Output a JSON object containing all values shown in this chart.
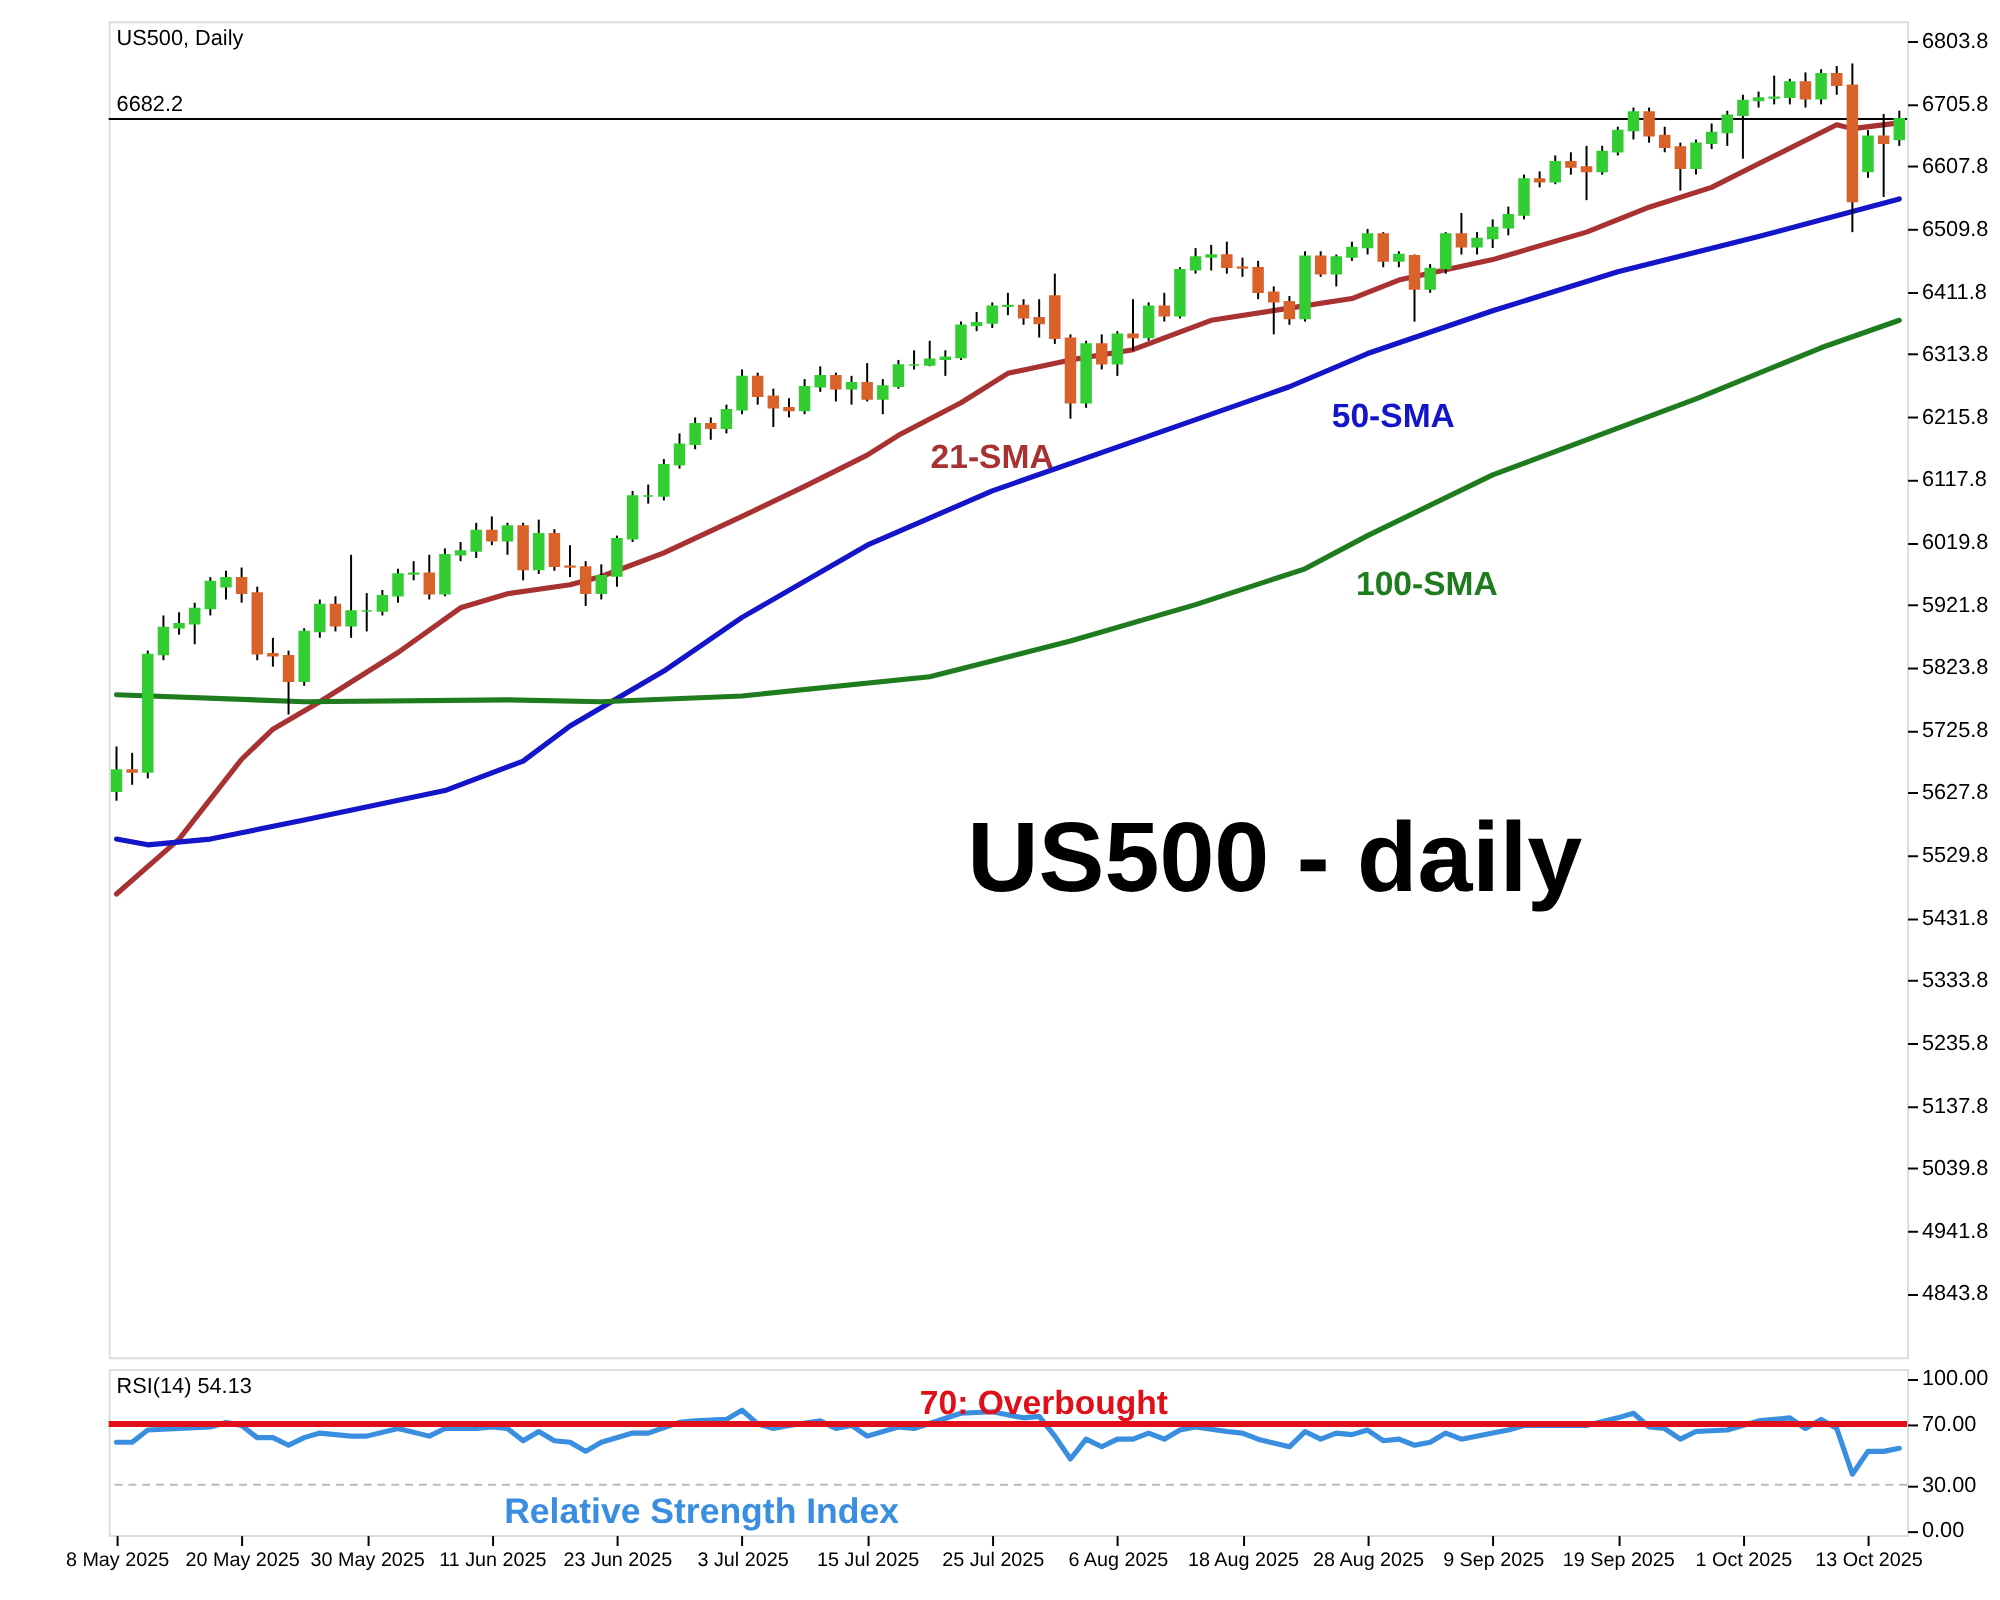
{
  "chart_data": [
    {
      "type": "candlestick",
      "title": "US500, Daily",
      "categories": [
        null,
        null,
        null,
        null,
        null,
        null,
        null,
        null,
        null,
        null,
        null,
        null,
        null,
        null,
        null,
        null,
        null,
        null,
        null,
        null,
        null,
        null,
        null,
        null,
        null,
        null,
        null,
        null,
        null,
        null,
        null,
        null,
        null,
        null,
        null,
        null,
        null,
        null,
        null,
        null,
        null,
        null,
        null,
        null,
        null,
        null,
        null,
        null,
        null,
        null,
        null,
        null,
        null,
        null,
        null,
        null,
        null,
        null,
        null,
        null,
        null,
        null,
        null,
        null,
        null,
        null,
        null,
        null,
        null,
        null,
        null,
        null,
        null,
        null,
        null,
        null,
        null,
        null,
        null,
        null,
        null,
        null,
        null,
        null,
        null,
        null,
        null,
        null,
        null,
        null,
        null,
        null,
        null,
        null,
        null,
        null,
        null,
        null,
        null,
        null,
        null,
        null,
        null,
        null,
        null,
        null,
        null,
        null,
        null,
        null,
        null,
        null,
        null,
        null,
        null
      ],
      "ohlc": [
        [
          5630,
          5700,
          5615,
          5663
        ],
        [
          5663,
          5690,
          5640,
          5660
        ],
        [
          5660,
          5850,
          5650,
          5844
        ],
        [
          5844,
          5905,
          5835,
          5886
        ],
        [
          5886,
          5910,
          5875,
          5892
        ],
        [
          5892,
          5925,
          5860,
          5916
        ],
        [
          5916,
          5965,
          5905,
          5958
        ],
        [
          5950,
          5975,
          5930,
          5964
        ],
        [
          5964,
          5980,
          5925,
          5940
        ],
        [
          5940,
          5950,
          5835,
          5845
        ],
        [
          5845,
          5870,
          5825,
          5842
        ],
        [
          5842,
          5850,
          5750,
          5802
        ],
        [
          5802,
          5885,
          5795,
          5880
        ],
        [
          5880,
          5930,
          5870,
          5922
        ],
        [
          5922,
          5935,
          5880,
          5889
        ],
        [
          5889,
          6000,
          5870,
          5912
        ],
        [
          5912,
          5940,
          5880,
          5912
        ],
        [
          5912,
          5945,
          5905,
          5936
        ],
        [
          5936,
          5978,
          5925,
          5970
        ],
        [
          5970,
          5990,
          5960,
          5971
        ],
        [
          5971,
          6000,
          5930,
          5939
        ],
        [
          5939,
          6010,
          5935,
          6000
        ],
        [
          6000,
          6020,
          5990,
          6006
        ],
        [
          6006,
          6050,
          5995,
          6038
        ],
        [
          6038,
          6060,
          6015,
          6022
        ],
        [
          6022,
          6050,
          6000,
          6045
        ],
        [
          6045,
          6050,
          5960,
          5977
        ],
        [
          5977,
          6055,
          5970,
          6033
        ],
        [
          6033,
          6040,
          5975,
          5982
        ],
        [
          5982,
          6015,
          5965,
          5981
        ],
        [
          5981,
          5990,
          5920,
          5940
        ],
        [
          5940,
          5985,
          5930,
          5967
        ],
        [
          5967,
          6030,
          5950,
          6025
        ],
        [
          6025,
          6100,
          6020,
          6092
        ],
        [
          6092,
          6110,
          6080,
          6092
        ],
        [
          6092,
          6150,
          6085,
          6141
        ],
        [
          6141,
          6190,
          6135,
          6173
        ],
        [
          6173,
          6215,
          6165,
          6205
        ],
        [
          6205,
          6215,
          6180,
          6198
        ],
        [
          6198,
          6235,
          6190,
          6227
        ],
        [
          6227,
          6290,
          6220,
          6279
        ],
        [
          6279,
          6285,
          6235,
          6248
        ],
        [
          6248,
          6260,
          6200,
          6230
        ],
        [
          6230,
          6245,
          6215,
          6226
        ],
        [
          6226,
          6275,
          6220,
          6263
        ],
        [
          6263,
          6295,
          6255,
          6280
        ],
        [
          6280,
          6285,
          6240,
          6260
        ],
        [
          6260,
          6280,
          6235,
          6269
        ],
        [
          6269,
          6300,
          6240,
          6244
        ],
        [
          6244,
          6275,
          6220,
          6264
        ],
        [
          6264,
          6305,
          6260,
          6297
        ],
        [
          6297,
          6320,
          6290,
          6297
        ],
        [
          6297,
          6335,
          6295,
          6306
        ],
        [
          6306,
          6320,
          6280,
          6309
        ],
        [
          6309,
          6365,
          6305,
          6359
        ],
        [
          6359,
          6380,
          6350,
          6363
        ],
        [
          6363,
          6395,
          6355,
          6389
        ],
        [
          6389,
          6410,
          6375,
          6390
        ],
        [
          6390,
          6400,
          6360,
          6371
        ],
        [
          6371,
          6400,
          6340,
          6362
        ],
        [
          6405,
          6440,
          6330,
          6339
        ],
        [
          6339,
          6345,
          6213,
          6238
        ],
        [
          6238,
          6335,
          6230,
          6330
        ],
        [
          6330,
          6345,
          6290,
          6299
        ],
        [
          6299,
          6350,
          6280,
          6345
        ],
        [
          6345,
          6400,
          6320,
          6340
        ],
        [
          6340,
          6395,
          6335,
          6389
        ],
        [
          6389,
          6410,
          6365,
          6374
        ],
        [
          6374,
          6450,
          6370,
          6446
        ],
        [
          6446,
          6480,
          6440,
          6466
        ],
        [
          6466,
          6485,
          6445,
          6469
        ],
        [
          6469,
          6490,
          6440,
          6450
        ],
        [
          6450,
          6465,
          6435,
          6449
        ],
        [
          6449,
          6460,
          6400,
          6411
        ],
        [
          6411,
          6420,
          6345,
          6396
        ],
        [
          6396,
          6405,
          6360,
          6370
        ],
        [
          6370,
          6475,
          6365,
          6467
        ],
        [
          6467,
          6475,
          6435,
          6440
        ],
        [
          6440,
          6470,
          6420,
          6466
        ],
        [
          6466,
          6490,
          6460,
          6481
        ],
        [
          6481,
          6510,
          6470,
          6502
        ],
        [
          6502,
          6505,
          6450,
          6460
        ],
        [
          6460,
          6475,
          6450,
          6470
        ],
        [
          6468,
          6470,
          6365,
          6416
        ],
        [
          6416,
          6455,
          6410,
          6448
        ],
        [
          6448,
          6505,
          6440,
          6502
        ],
        [
          6502,
          6535,
          6470,
          6482
        ],
        [
          6482,
          6505,
          6470,
          6495
        ],
        [
          6495,
          6525,
          6480,
          6512
        ],
        [
          6512,
          6545,
          6500,
          6532
        ],
        [
          6532,
          6595,
          6525,
          6588
        ],
        [
          6588,
          6600,
          6575,
          6584
        ],
        [
          6584,
          6625,
          6580,
          6615
        ],
        [
          6615,
          6630,
          6595,
          6607
        ],
        [
          6607,
          6640,
          6555,
          6600
        ],
        [
          6600,
          6640,
          6595,
          6631
        ],
        [
          6631,
          6670,
          6625,
          6664
        ],
        [
          6664,
          6700,
          6650,
          6693
        ],
        [
          6693,
          6700,
          6645,
          6656
        ],
        [
          6656,
          6670,
          6630,
          6638
        ],
        [
          6638,
          6645,
          6570,
          6605
        ],
        [
          6605,
          6650,
          6595,
          6644
        ],
        [
          6644,
          6675,
          6635,
          6661
        ],
        [
          6661,
          6695,
          6640,
          6688
        ],
        [
          6688,
          6720,
          6620,
          6711
        ],
        [
          6711,
          6725,
          6700,
          6715
        ],
        [
          6715,
          6750,
          6705,
          6716
        ],
        [
          6716,
          6745,
          6705,
          6740
        ],
        [
          6740,
          6755,
          6700,
          6714
        ],
        [
          6714,
          6760,
          6705,
          6753
        ],
        [
          6753,
          6765,
          6720,
          6735
        ],
        [
          6735,
          6769,
          6505,
          6553
        ],
        [
          6600,
          6665,
          6590,
          6655
        ],
        [
          6655,
          6690,
          6560,
          6644
        ],
        [
          6650,
          6695,
          6640,
          6682.2
        ]
      ],
      "colors": [
        "#32cd32",
        "#d9622b",
        "#32cd32",
        "#32cd32",
        "#32cd32",
        "#32cd32",
        "#32cd32",
        "#32cd32",
        "#d9622b",
        "#d9622b",
        "#d9622b",
        "#d9622b",
        "#32cd32",
        "#32cd32",
        "#d9622b",
        "#32cd32",
        "#32cd32",
        "#32cd32",
        "#32cd32",
        "#32cd32",
        "#d9622b",
        "#32cd32",
        "#32cd32",
        "#32cd32",
        "#d9622b",
        "#32cd32",
        "#d9622b",
        "#32cd32",
        "#d9622b",
        "#d9622b",
        "#d9622b",
        "#32cd32",
        "#32cd32",
        "#32cd32",
        "#32cd32",
        "#32cd32",
        "#32cd32",
        "#32cd32",
        "#d9622b",
        "#32cd32",
        "#32cd32",
        "#d9622b",
        "#d9622b",
        "#d9622b",
        "#32cd32",
        "#32cd32",
        "#d9622b",
        "#32cd32",
        "#d9622b",
        "#32cd32",
        "#32cd32",
        "#32cd32",
        "#32cd32",
        "#32cd32",
        "#32cd32",
        "#32cd32",
        "#32cd32",
        "#32cd32",
        "#d9622b",
        "#d9622b",
        "#d9622b",
        "#d9622b",
        "#32cd32",
        "#d9622b",
        "#32cd32",
        "#d9622b",
        "#32cd32",
        "#d9622b",
        "#32cd32",
        "#32cd32",
        "#32cd32",
        "#d9622b",
        "#d9622b",
        "#d9622b",
        "#d9622b",
        "#d9622b",
        "#32cd32",
        "#d9622b",
        "#32cd32",
        "#32cd32",
        "#32cd32",
        "#d9622b",
        "#32cd32",
        "#d9622b",
        "#32cd32",
        "#32cd32",
        "#d9622b",
        "#32cd32",
        "#32cd32",
        "#32cd32",
        "#32cd32",
        "#d9622b",
        "#32cd32",
        "#d9622b",
        "#d9622b",
        "#32cd32",
        "#32cd32",
        "#32cd32",
        "#d9622b",
        "#d9622b",
        "#d9622b",
        "#32cd32",
        "#32cd32",
        "#32cd32",
        "#32cd32",
        "#32cd32",
        "#32cd32",
        "#32cd32",
        "#d9622b",
        "#32cd32",
        "#d9622b",
        "#d9622b",
        "#32cd32",
        "#d9622b",
        "#32cd32"
      ],
      "series": [
        {
          "type": "line",
          "name": "21-SMA",
          "color": "#a83232",
          "values": [
            5469,
            null,
            null,
            null,
            5555,
            null,
            null,
            null,
            5680,
            null,
            5727,
            null,
            null,
            5770,
            null,
            null,
            null,
            null,
            5847,
            null,
            null,
            null,
            5917,
            null,
            null,
            5939,
            null,
            null,
            null,
            5953,
            null,
            5966,
            null,
            null,
            null,
            6003,
            null,
            null,
            null,
            null,
            6060,
            null,
            null,
            null,
            6107,
            null,
            null,
            null,
            6156,
            null,
            6187,
            null,
            null,
            null,
            6238,
            null,
            null,
            6284,
            null,
            null,
            null,
            6305,
            null,
            null,
            null,
            6321,
            null,
            null,
            null,
            null,
            6367,
            null,
            null,
            null,
            null,
            6386,
            null,
            null,
            null,
            6401,
            null,
            null,
            6430,
            null,
            null,
            null,
            null,
            null,
            6462,
            null,
            null,
            null,
            null,
            null,
            6505,
            null,
            null,
            null,
            6544,
            null,
            null,
            null,
            6575,
            null,
            null,
            6612,
            null,
            null,
            null,
            null,
            6673,
            6667,
            null,
            null,
            6676
          ]
        },
        {
          "type": "line",
          "name": "50-SMA",
          "color": "#1414c8",
          "values": [
            5555,
            null,
            5546,
            null,
            null,
            null,
            5555,
            null,
            null,
            null,
            null,
            null,
            5585,
            null,
            null,
            null,
            null,
            null,
            null,
            null,
            null,
            5631,
            null,
            null,
            null,
            null,
            5677,
            null,
            null,
            5732,
            null,
            null,
            null,
            null,
            null,
            5818,
            null,
            null,
            null,
            null,
            5902,
            null,
            null,
            null,
            null,
            null,
            null,
            null,
            6015,
            null,
            null,
            null,
            null,
            null,
            null,
            null,
            6100,
            null,
            null,
            null,
            null,
            null,
            null,
            null,
            null,
            6177,
            null,
            null,
            null,
            null,
            null,
            null,
            null,
            null,
            null,
            6263,
            null,
            null,
            null,
            null,
            6315,
            null,
            null,
            null,
            null,
            null,
            null,
            null,
            6382,
            null,
            null,
            null,
            null,
            null,
            null,
            null,
            6443,
            null,
            null,
            null,
            null,
            null,
            null,
            null,
            null,
            6498,
            null,
            null,
            null,
            null,
            null,
            null,
            null,
            null,
            6557
          ]
        },
        {
          "type": "line",
          "name": "100-SMA",
          "color": "#1e7b1e",
          "values": [
            5781,
            null,
            null,
            null,
            null,
            null,
            null,
            null,
            null,
            null,
            null,
            null,
            5770,
            null,
            null,
            null,
            null,
            null,
            null,
            null,
            null,
            null,
            null,
            null,
            null,
            5773,
            null,
            null,
            null,
            null,
            null,
            5770,
            null,
            null,
            null,
            null,
            null,
            null,
            null,
            null,
            5779,
            null,
            null,
            null,
            null,
            null,
            null,
            null,
            null,
            null,
            null,
            null,
            5809,
            null,
            null,
            null,
            null,
            null,
            null,
            null,
            null,
            5865,
            null,
            null,
            null,
            null,
            null,
            null,
            null,
            5922,
            null,
            null,
            null,
            null,
            null,
            null,
            5978,
            null,
            null,
            null,
            6030,
            null,
            null,
            null,
            null,
            null,
            null,
            null,
            6125,
            null,
            null,
            null,
            null,
            null,
            null,
            null,
            null,
            null,
            null,
            null,
            null,
            6244,
            null,
            null,
            null,
            null,
            null,
            null,
            null,
            6324,
            null,
            null,
            null,
            null,
            6367
          ]
        }
      ],
      "ylim": [
        4744,
        6835
      ],
      "yticks": [
        4843.8,
        4941.8,
        5039.8,
        5137.8,
        5235.8,
        5333.8,
        5431.8,
        5529.8,
        5627.8,
        5725.8,
        5823.8,
        5921.8,
        6019.8,
        6117.8,
        6215.8,
        6313.8,
        6411.8,
        6509.8,
        6607.8,
        6705.8,
        6803.8
      ],
      "ref_lines": [
        {
          "axis": "y",
          "value": 6682.2,
          "label": "6682.2",
          "color": "#000000"
        }
      ],
      "annotations": [
        "US500 - daily"
      ],
      "tick_labels": "y"
    },
    {
      "type": "line",
      "title": "RSI(14) 54.13",
      "categories": [
        "8 May 2025",
        null,
        null,
        null,
        null,
        null,
        null,
        null,
        "20 May 2025",
        null,
        null,
        null,
        null,
        null,
        null,
        null,
        "30 May 2025",
        null,
        null,
        null,
        null,
        null,
        null,
        null,
        "11 Jun 2025",
        null,
        null,
        null,
        null,
        null,
        null,
        null,
        "23 Jun 2025",
        null,
        null,
        null,
        null,
        null,
        null,
        null,
        "3 Jul 2025",
        null,
        null,
        null,
        null,
        null,
        null,
        null,
        "15 Jul 2025",
        null,
        null,
        null,
        null,
        null,
        null,
        null,
        "25 Jul 2025",
        null,
        null,
        null,
        null,
        null,
        null,
        null,
        "6 Aug 2025",
        null,
        null,
        null,
        null,
        null,
        null,
        null,
        "18 Aug 2025",
        null,
        null,
        null,
        null,
        null,
        null,
        null,
        "28 Aug 2025",
        null,
        null,
        null,
        null,
        null,
        null,
        null,
        "9 Sep 2025",
        null,
        null,
        null,
        null,
        null,
        null,
        null,
        "19 Sep 2025",
        null,
        null,
        null,
        null,
        null,
        null,
        null,
        "1 Oct 2025",
        null,
        null,
        null,
        null,
        null,
        null,
        null,
        "13 Oct 2025",
        null,
        null
      ],
      "series": [
        {
          "type": "line",
          "name": "Relative Strength Index",
          "color": "#3a8ee0",
          "values": [
            58,
            58,
            66,
            null,
            67,
            null,
            68,
            71,
            69,
            61,
            61,
            56,
            61,
            64,
            null,
            62,
            62,
            null,
            67,
            null,
            62,
            67,
            null,
            67,
            68,
            67,
            59,
            65,
            59,
            58,
            52,
            58,
            null,
            64,
            64,
            null,
            71,
            72,
            null,
            73,
            79,
            70,
            67,
            69,
            null,
            72,
            67,
            69,
            62,
            null,
            68,
            67,
            null,
            null,
            77,
            null,
            78,
            null,
            74,
            75,
            62,
            47,
            60,
            55,
            60,
            60,
            64,
            60,
            66,
            68,
            null,
            65,
            64,
            60,
            null,
            55,
            65,
            60,
            64,
            63,
            66,
            59,
            60,
            56,
            58,
            64,
            60,
            null,
            64,
            66,
            69,
            null,
            69,
            69,
            69,
            null,
            74,
            77,
            68,
            67,
            60,
            65,
            null,
            66,
            69,
            72,
            null,
            74,
            67,
            73,
            67,
            37,
            52,
            52,
            54
          ]
        }
      ],
      "ylim": [
        -3,
        106
      ],
      "yticks": [
        {
          "value": 0,
          "label": "0.00"
        },
        {
          "value": 30,
          "label": "30.00"
        },
        {
          "value": 70,
          "label": "70.00"
        },
        {
          "value": 100,
          "label": "100.00"
        }
      ],
      "ref_lines": [
        {
          "axis": "y",
          "value": 70,
          "label": "70: Overbought",
          "color": "#e0101a"
        },
        {
          "axis": "y",
          "value": 30,
          "color": "#bbbbbb",
          "line_style": "dashed"
        }
      ]
    }
  ]
}
